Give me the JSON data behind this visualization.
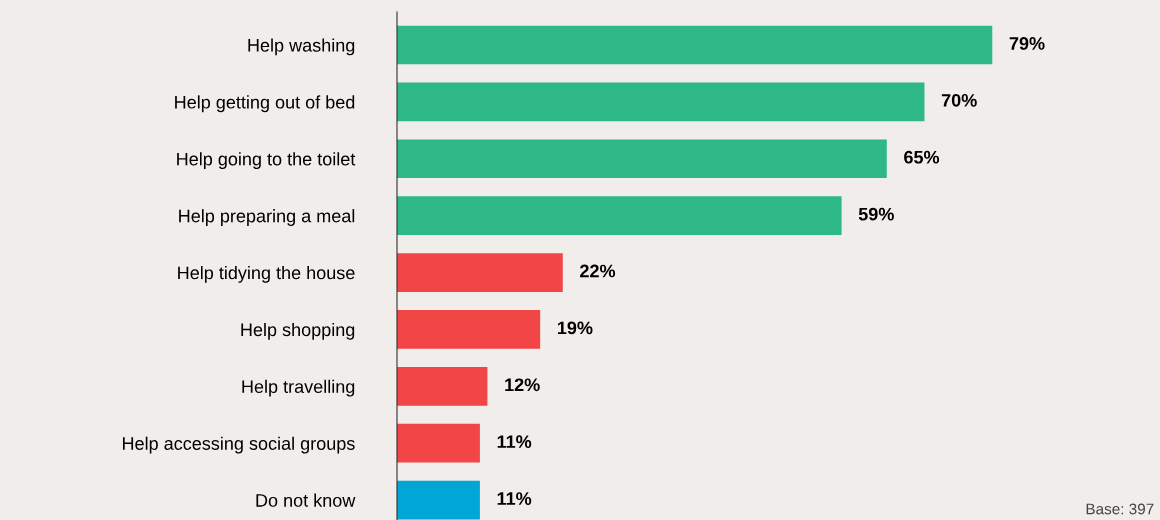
{
  "chart_data": {
    "type": "bar",
    "orientation": "horizontal",
    "categories": [
      "Help washing",
      "Help getting out of bed",
      "Help going to the toilet",
      "Help preparing a meal",
      "Help tidying the house",
      "Help shopping",
      "Help travelling",
      "Help accessing social groups",
      "Do not know"
    ],
    "values": [
      79,
      70,
      65,
      59,
      22,
      19,
      12,
      11,
      11
    ],
    "colors": [
      "#2eb888",
      "#2eb888",
      "#2eb888",
      "#2eb888",
      "#f24545",
      "#f24545",
      "#f24545",
      "#f24545",
      "#00a6d6"
    ],
    "value_labels": [
      "79%",
      "70%",
      "65%",
      "59%",
      "22%",
      "19%",
      "12%",
      "11%",
      "11%"
    ],
    "tick_labels": "y",
    "grid": false,
    "legend": false,
    "annotations": [
      "Base: 397"
    ]
  }
}
